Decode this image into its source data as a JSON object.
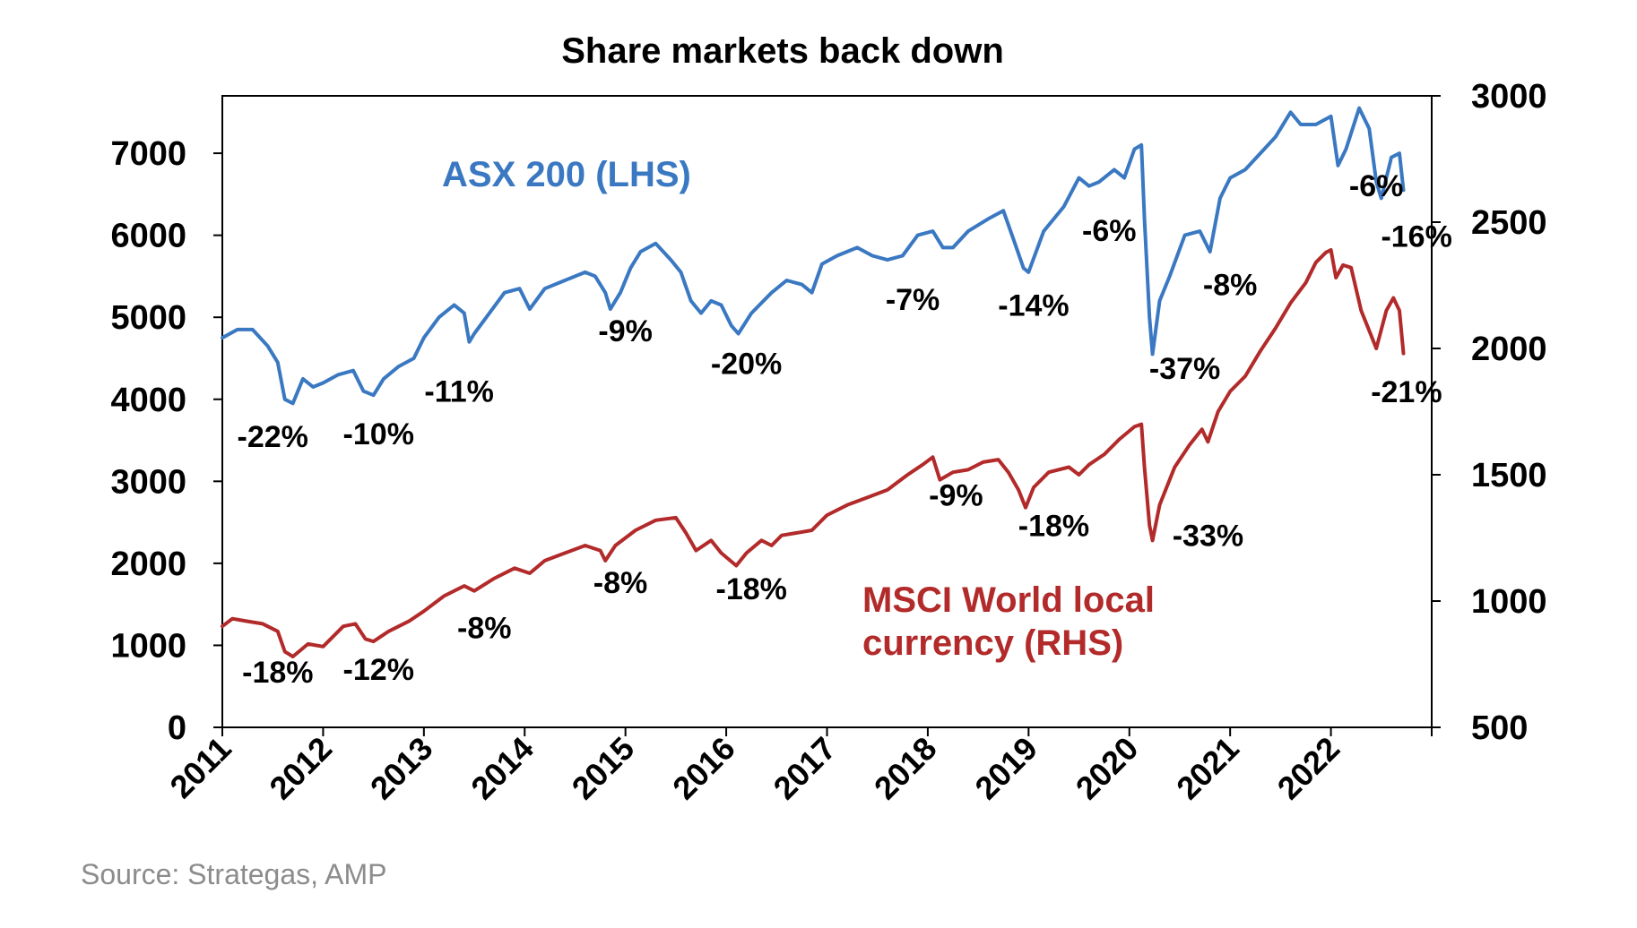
{
  "chart_data": {
    "type": "line",
    "title": "Share markets back down",
    "source": "Source: Strategas, AMP",
    "x_ticks": [
      "2011",
      "2012",
      "2013",
      "2014",
      "2015",
      "2016",
      "2017",
      "2018",
      "2019",
      "2020",
      "2021",
      "2022"
    ],
    "xlim": [
      2011,
      2023
    ],
    "y_left": {
      "ticks": [
        "0",
        "1000",
        "2000",
        "3000",
        "4000",
        "5000",
        "6000",
        "7000"
      ],
      "ylim": [
        0,
        7700
      ]
    },
    "y_right": {
      "ticks": [
        "500",
        "1000",
        "1500",
        "2000",
        "2500",
        "3000"
      ],
      "ylim": [
        500,
        3000
      ]
    },
    "series": [
      {
        "name": "ASX 200 (LHS)",
        "axis": "left",
        "color": "#3a78c2",
        "points": [
          [
            2011.0,
            4750
          ],
          [
            2011.15,
            4850
          ],
          [
            2011.3,
            4850
          ],
          [
            2011.45,
            4650
          ],
          [
            2011.55,
            4450
          ],
          [
            2011.62,
            4000
          ],
          [
            2011.7,
            3950
          ],
          [
            2011.8,
            4250
          ],
          [
            2011.9,
            4150
          ],
          [
            2012.0,
            4200
          ],
          [
            2012.15,
            4300
          ],
          [
            2012.3,
            4350
          ],
          [
            2012.4,
            4100
          ],
          [
            2012.5,
            4050
          ],
          [
            2012.6,
            4250
          ],
          [
            2012.75,
            4400
          ],
          [
            2012.9,
            4500
          ],
          [
            2013.0,
            4750
          ],
          [
            2013.15,
            5000
          ],
          [
            2013.3,
            5150
          ],
          [
            2013.4,
            5050
          ],
          [
            2013.45,
            4700
          ],
          [
            2013.5,
            4800
          ],
          [
            2013.65,
            5050
          ],
          [
            2013.8,
            5300
          ],
          [
            2013.95,
            5350
          ],
          [
            2014.05,
            5100
          ],
          [
            2014.2,
            5350
          ],
          [
            2014.4,
            5450
          ],
          [
            2014.6,
            5550
          ],
          [
            2014.7,
            5500
          ],
          [
            2014.8,
            5300
          ],
          [
            2014.85,
            5100
          ],
          [
            2014.95,
            5300
          ],
          [
            2015.05,
            5600
          ],
          [
            2015.15,
            5800
          ],
          [
            2015.3,
            5900
          ],
          [
            2015.45,
            5700
          ],
          [
            2015.55,
            5550
          ],
          [
            2015.65,
            5200
          ],
          [
            2015.75,
            5050
          ],
          [
            2015.85,
            5200
          ],
          [
            2015.95,
            5150
          ],
          [
            2016.05,
            4900
          ],
          [
            2016.12,
            4800
          ],
          [
            2016.25,
            5050
          ],
          [
            2016.45,
            5300
          ],
          [
            2016.6,
            5450
          ],
          [
            2016.75,
            5400
          ],
          [
            2016.85,
            5300
          ],
          [
            2016.95,
            5650
          ],
          [
            2017.1,
            5750
          ],
          [
            2017.3,
            5850
          ],
          [
            2017.45,
            5750
          ],
          [
            2017.6,
            5700
          ],
          [
            2017.75,
            5750
          ],
          [
            2017.9,
            6000
          ],
          [
            2018.05,
            6050
          ],
          [
            2018.15,
            5850
          ],
          [
            2018.25,
            5850
          ],
          [
            2018.4,
            6050
          ],
          [
            2018.6,
            6200
          ],
          [
            2018.75,
            6300
          ],
          [
            2018.85,
            5950
          ],
          [
            2018.95,
            5600
          ],
          [
            2019.0,
            5550
          ],
          [
            2019.15,
            6050
          ],
          [
            2019.35,
            6350
          ],
          [
            2019.5,
            6700
          ],
          [
            2019.6,
            6600
          ],
          [
            2019.7,
            6650
          ],
          [
            2019.85,
            6800
          ],
          [
            2019.95,
            6700
          ],
          [
            2020.05,
            7050
          ],
          [
            2020.12,
            7100
          ],
          [
            2020.15,
            6200
          ],
          [
            2020.2,
            5000
          ],
          [
            2020.23,
            4550
          ],
          [
            2020.3,
            5200
          ],
          [
            2020.4,
            5500
          ],
          [
            2020.55,
            6000
          ],
          [
            2020.7,
            6050
          ],
          [
            2020.8,
            5800
          ],
          [
            2020.9,
            6450
          ],
          [
            2021.0,
            6700
          ],
          [
            2021.15,
            6800
          ],
          [
            2021.3,
            7000
          ],
          [
            2021.45,
            7200
          ],
          [
            2021.6,
            7500
          ],
          [
            2021.7,
            7350
          ],
          [
            2021.85,
            7350
          ],
          [
            2022.0,
            7450
          ],
          [
            2022.07,
            6850
          ],
          [
            2022.15,
            7050
          ],
          [
            2022.28,
            7550
          ],
          [
            2022.38,
            7300
          ],
          [
            2022.45,
            6650
          ],
          [
            2022.5,
            6450
          ],
          [
            2022.6,
            6950
          ],
          [
            2022.68,
            7000
          ],
          [
            2022.72,
            6550
          ]
        ]
      },
      {
        "name": "MSCI World local currency (RHS)",
        "axis": "right",
        "color": "#b22a2a",
        "points": [
          [
            2011.0,
            900
          ],
          [
            2011.1,
            930
          ],
          [
            2011.25,
            920
          ],
          [
            2011.4,
            910
          ],
          [
            2011.55,
            880
          ],
          [
            2011.62,
            800
          ],
          [
            2011.7,
            780
          ],
          [
            2011.85,
            830
          ],
          [
            2012.0,
            820
          ],
          [
            2012.2,
            900
          ],
          [
            2012.32,
            910
          ],
          [
            2012.42,
            850
          ],
          [
            2012.5,
            840
          ],
          [
            2012.65,
            880
          ],
          [
            2012.85,
            920
          ],
          [
            2013.0,
            960
          ],
          [
            2013.2,
            1020
          ],
          [
            2013.4,
            1060
          ],
          [
            2013.5,
            1040
          ],
          [
            2013.7,
            1090
          ],
          [
            2013.9,
            1130
          ],
          [
            2014.05,
            1110
          ],
          [
            2014.2,
            1160
          ],
          [
            2014.4,
            1190
          ],
          [
            2014.6,
            1220
          ],
          [
            2014.75,
            1200
          ],
          [
            2014.8,
            1160
          ],
          [
            2014.9,
            1220
          ],
          [
            2015.1,
            1280
          ],
          [
            2015.3,
            1320
          ],
          [
            2015.5,
            1330
          ],
          [
            2015.6,
            1270
          ],
          [
            2015.7,
            1200
          ],
          [
            2015.85,
            1240
          ],
          [
            2015.95,
            1190
          ],
          [
            2016.1,
            1140
          ],
          [
            2016.2,
            1190
          ],
          [
            2016.35,
            1240
          ],
          [
            2016.45,
            1220
          ],
          [
            2016.55,
            1260
          ],
          [
            2016.7,
            1270
          ],
          [
            2016.85,
            1280
          ],
          [
            2017.0,
            1340
          ],
          [
            2017.2,
            1380
          ],
          [
            2017.4,
            1410
          ],
          [
            2017.6,
            1440
          ],
          [
            2017.8,
            1500
          ],
          [
            2017.95,
            1540
          ],
          [
            2018.05,
            1570
          ],
          [
            2018.12,
            1480
          ],
          [
            2018.25,
            1510
          ],
          [
            2018.4,
            1520
          ],
          [
            2018.55,
            1550
          ],
          [
            2018.7,
            1560
          ],
          [
            2018.8,
            1510
          ],
          [
            2018.9,
            1440
          ],
          [
            2018.97,
            1370
          ],
          [
            2019.05,
            1450
          ],
          [
            2019.2,
            1510
          ],
          [
            2019.4,
            1530
          ],
          [
            2019.5,
            1500
          ],
          [
            2019.6,
            1540
          ],
          [
            2019.75,
            1580
          ],
          [
            2019.9,
            1640
          ],
          [
            2020.05,
            1690
          ],
          [
            2020.12,
            1700
          ],
          [
            2020.15,
            1530
          ],
          [
            2020.2,
            1300
          ],
          [
            2020.23,
            1240
          ],
          [
            2020.3,
            1380
          ],
          [
            2020.45,
            1530
          ],
          [
            2020.6,
            1620
          ],
          [
            2020.72,
            1680
          ],
          [
            2020.78,
            1630
          ],
          [
            2020.88,
            1750
          ],
          [
            2021.0,
            1830
          ],
          [
            2021.15,
            1890
          ],
          [
            2021.3,
            1990
          ],
          [
            2021.45,
            2080
          ],
          [
            2021.6,
            2180
          ],
          [
            2021.75,
            2260
          ],
          [
            2021.85,
            2340
          ],
          [
            2021.95,
            2380
          ],
          [
            2022.0,
            2390
          ],
          [
            2022.05,
            2280
          ],
          [
            2022.12,
            2330
          ],
          [
            2022.2,
            2320
          ],
          [
            2022.3,
            2150
          ],
          [
            2022.4,
            2050
          ],
          [
            2022.45,
            2000
          ],
          [
            2022.55,
            2150
          ],
          [
            2022.62,
            2200
          ],
          [
            2022.68,
            2150
          ],
          [
            2022.72,
            1980
          ]
        ]
      }
    ],
    "series_labels": [
      {
        "lines": [
          "ASX 200 (LHS)"
        ],
        "series": "ASX 200 (LHS)"
      },
      {
        "lines": [
          "MSCI World local",
          "currency (RHS)"
        ],
        "series": "MSCI World local currency (RHS)"
      }
    ],
    "annotations": [
      {
        "text": "-22%",
        "series": "ASX 200 (LHS)",
        "x": 2011.5,
        "y": 3550
      },
      {
        "text": "-10%",
        "series": "ASX 200 (LHS)",
        "x": 2012.55,
        "y": 3580
      },
      {
        "text": "-11%",
        "series": "ASX 200 (LHS)",
        "x": 2013.35,
        "y": 4100
      },
      {
        "text": "-9%",
        "series": "ASX 200 (LHS)",
        "x": 2015.0,
        "y": 4840
      },
      {
        "text": "-20%",
        "series": "ASX 200 (LHS)",
        "x": 2016.2,
        "y": 4440
      },
      {
        "text": "-7%",
        "series": "ASX 200 (LHS)",
        "x": 2017.85,
        "y": 5220
      },
      {
        "text": "-14%",
        "series": "ASX 200 (LHS)",
        "x": 2019.05,
        "y": 5150
      },
      {
        "text": "-6%",
        "series": "ASX 200 (LHS)",
        "x": 2019.8,
        "y": 6060
      },
      {
        "text": "-37%",
        "series": "ASX 200 (LHS)",
        "x": 2020.55,
        "y": 4380
      },
      {
        "text": "-8%",
        "series": "ASX 200 (LHS)",
        "x": 2021.0,
        "y": 5400
      },
      {
        "text": "-6%",
        "series": "ASX 200 (LHS)",
        "x": 2022.45,
        "y": 6610
      },
      {
        "text": "-16%",
        "series": "ASX 200 (LHS)",
        "x": 2022.85,
        "y": 5990
      },
      {
        "text": "-21%",
        "series": "MSCI World local currency (RHS)",
        "x": 2022.75,
        "y": 1830
      },
      {
        "text": "-9%",
        "series": "MSCI World local currency (RHS)",
        "x": 2018.28,
        "y": 1420
      },
      {
        "text": "-18%",
        "series": "MSCI World local currency (RHS)",
        "x": 2019.25,
        "y": 1300
      },
      {
        "text": "-33%",
        "series": "MSCI World local currency (RHS)",
        "x": 2020.78,
        "y": 1260
      },
      {
        "text": "-8%",
        "series": "MSCI World local currency (RHS)",
        "x": 2014.95,
        "y": 1075
      },
      {
        "text": "-18%",
        "series": "MSCI World local currency (RHS)",
        "x": 2016.25,
        "y": 1050
      },
      {
        "text": "-8%",
        "series": "MSCI World local currency (RHS)",
        "x": 2013.6,
        "y": 895
      },
      {
        "text": "-18%",
        "series": "MSCI World local currency (RHS)",
        "x": 2011.55,
        "y": 720
      },
      {
        "text": "-12%",
        "series": "MSCI World local currency (RHS)",
        "x": 2012.55,
        "y": 730
      }
    ]
  }
}
